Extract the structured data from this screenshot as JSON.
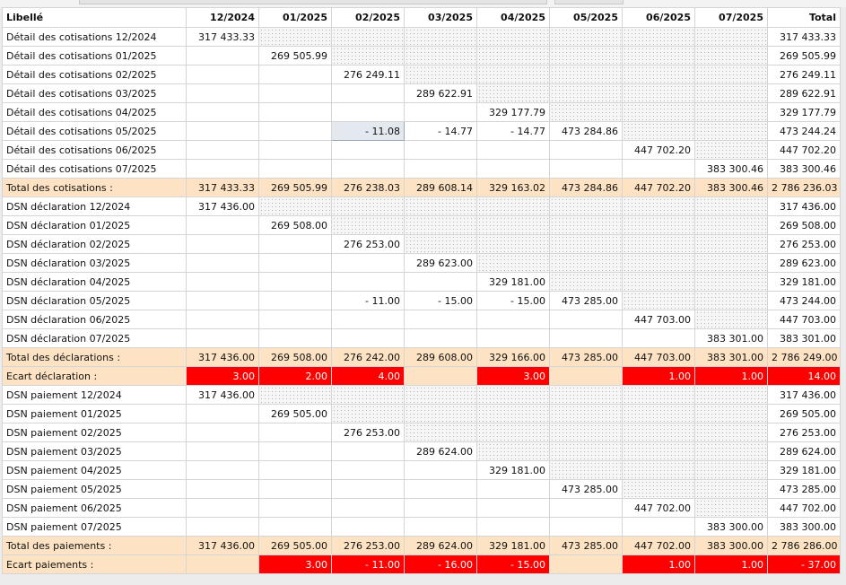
{
  "header": [
    "Libellé",
    "12/2024",
    "01/2025",
    "02/2025",
    "03/2025",
    "04/2025",
    "05/2025",
    "06/2025",
    "07/2025",
    "Total"
  ],
  "rows": [
    {
      "type": "row",
      "label": "Détail des cotisations 12/2024",
      "c": [
        "317 433.33",
        "",
        "",
        "",
        "",
        "",
        "",
        ""
      ],
      "total": "317 433.33",
      "dotted": [
        1,
        2,
        3,
        4,
        5,
        6,
        7
      ]
    },
    {
      "type": "row",
      "label": "Détail des cotisations 01/2025",
      "c": [
        "",
        "269 505.99",
        "",
        "",
        "",
        "",
        "",
        ""
      ],
      "total": "269 505.99",
      "dotted": [
        2,
        3,
        4,
        5,
        6,
        7
      ]
    },
    {
      "type": "row",
      "label": "Détail des cotisations 02/2025",
      "c": [
        "",
        "",
        "276 249.11",
        "",
        "",
        "",
        "",
        ""
      ],
      "total": "276 249.11",
      "dotted": [
        3,
        4,
        5,
        6,
        7
      ]
    },
    {
      "type": "row",
      "label": "Détail des cotisations 03/2025",
      "c": [
        "",
        "",
        "",
        "289 622.91",
        "",
        "",
        "",
        ""
      ],
      "total": "289 622.91",
      "dotted": [
        4,
        5,
        6,
        7
      ]
    },
    {
      "type": "row",
      "label": "Détail des cotisations 04/2025",
      "c": [
        "",
        "",
        "",
        "",
        "329 177.79",
        "",
        "",
        ""
      ],
      "total": "329 177.79",
      "dotted": [
        5,
        6,
        7
      ]
    },
    {
      "type": "row",
      "label": "Détail des cotisations 05/2025",
      "c": [
        "",
        "",
        "- 11.08",
        "- 14.77",
        "- 14.77",
        "473 284.86",
        "",
        ""
      ],
      "total": "473 244.24",
      "dotted": [
        6,
        7
      ],
      "selected": 2
    },
    {
      "type": "row",
      "label": "Détail des cotisations 06/2025",
      "c": [
        "",
        "",
        "",
        "",
        "",
        "",
        "447 702.20",
        ""
      ],
      "total": "447 702.20",
      "dotted": [
        7
      ]
    },
    {
      "type": "row",
      "label": "Détail des cotisations 07/2025",
      "c": [
        "",
        "",
        "",
        "",
        "",
        "",
        "",
        "383 300.46"
      ],
      "total": "383 300.46",
      "dotted": []
    },
    {
      "type": "tot",
      "label": "Total des cotisations :",
      "c": [
        "317 433.33",
        "269 505.99",
        "276 238.03",
        "289 608.14",
        "329 163.02",
        "473 284.86",
        "447 702.20",
        "383 300.46"
      ],
      "total": "2 786 236.03"
    },
    {
      "type": "row",
      "label": "DSN déclaration 12/2024",
      "c": [
        "317 436.00",
        "",
        "",
        "",
        "",
        "",
        "",
        ""
      ],
      "total": "317 436.00",
      "dotted": [
        1,
        2,
        3,
        4,
        5,
        6,
        7
      ]
    },
    {
      "type": "row",
      "label": "DSN déclaration 01/2025",
      "c": [
        "",
        "269 508.00",
        "",
        "",
        "",
        "",
        "",
        ""
      ],
      "total": "269 508.00",
      "dotted": [
        2,
        3,
        4,
        5,
        6,
        7
      ]
    },
    {
      "type": "row",
      "label": "DSN déclaration 02/2025",
      "c": [
        "",
        "",
        "276 253.00",
        "",
        "",
        "",
        "",
        ""
      ],
      "total": "276 253.00",
      "dotted": [
        3,
        4,
        5,
        6,
        7
      ]
    },
    {
      "type": "row",
      "label": "DSN déclaration 03/2025",
      "c": [
        "",
        "",
        "",
        "289 623.00",
        "",
        "",
        "",
        ""
      ],
      "total": "289 623.00",
      "dotted": [
        4,
        5,
        6,
        7
      ]
    },
    {
      "type": "row",
      "label": "DSN déclaration 04/2025",
      "c": [
        "",
        "",
        "",
        "",
        "329 181.00",
        "",
        "",
        ""
      ],
      "total": "329 181.00",
      "dotted": [
        5,
        6,
        7
      ]
    },
    {
      "type": "row",
      "label": "DSN déclaration 05/2025",
      "c": [
        "",
        "",
        "- 11.00",
        "- 15.00",
        "- 15.00",
        "473 285.00",
        "",
        ""
      ],
      "total": "473 244.00",
      "dotted": [
        6,
        7
      ]
    },
    {
      "type": "row",
      "label": "DSN déclaration 06/2025",
      "c": [
        "",
        "",
        "",
        "",
        "",
        "",
        "447 703.00",
        ""
      ],
      "total": "447 703.00",
      "dotted": [
        7
      ]
    },
    {
      "type": "row",
      "label": "DSN déclaration 07/2025",
      "c": [
        "",
        "",
        "",
        "",
        "",
        "",
        "",
        "383 301.00"
      ],
      "total": "383 301.00",
      "dotted": []
    },
    {
      "type": "tot",
      "label": "Total des déclarations :",
      "c": [
        "317 436.00",
        "269 508.00",
        "276 242.00",
        "289 608.00",
        "329 166.00",
        "473 285.00",
        "447 703.00",
        "383 301.00"
      ],
      "total": "2 786 249.00"
    },
    {
      "type": "ecart",
      "label": "Ecart déclaration :",
      "c": [
        "3.00",
        "2.00",
        "4.00",
        "",
        "3.00",
        "",
        "1.00",
        "1.00"
      ],
      "total": "14.00",
      "red": [
        0,
        1,
        2,
        4,
        6,
        7,
        8
      ]
    },
    {
      "type": "row",
      "label": "DSN paiement 12/2024",
      "c": [
        "317 436.00",
        "",
        "",
        "",
        "",
        "",
        "",
        ""
      ],
      "total": "317 436.00",
      "dotted": [
        1,
        2,
        3,
        4,
        5,
        6,
        7
      ]
    },
    {
      "type": "row",
      "label": "DSN paiement 01/2025",
      "c": [
        "",
        "269 505.00",
        "",
        "",
        "",
        "",
        "",
        ""
      ],
      "total": "269 505.00",
      "dotted": [
        2,
        3,
        4,
        5,
        6,
        7
      ]
    },
    {
      "type": "row",
      "label": "DSN paiement 02/2025",
      "c": [
        "",
        "",
        "276 253.00",
        "",
        "",
        "",
        "",
        ""
      ],
      "total": "276 253.00",
      "dotted": [
        3,
        4,
        5,
        6,
        7
      ]
    },
    {
      "type": "row",
      "label": "DSN paiement 03/2025",
      "c": [
        "",
        "",
        "",
        "289 624.00",
        "",
        "",
        "",
        ""
      ],
      "total": "289 624.00",
      "dotted": [
        4,
        5,
        6,
        7
      ]
    },
    {
      "type": "row",
      "label": "DSN paiement 04/2025",
      "c": [
        "",
        "",
        "",
        "",
        "329 181.00",
        "",
        "",
        ""
      ],
      "total": "329 181.00",
      "dotted": [
        5,
        6,
        7
      ]
    },
    {
      "type": "row",
      "label": "DSN paiement 05/2025",
      "c": [
        "",
        "",
        "",
        "",
        "",
        "473 285.00",
        "",
        ""
      ],
      "total": "473 285.00",
      "dotted": [
        6,
        7
      ]
    },
    {
      "type": "row",
      "label": "DSN paiement 06/2025",
      "c": [
        "",
        "",
        "",
        "",
        "",
        "",
        "447 702.00",
        ""
      ],
      "total": "447 702.00",
      "dotted": [
        7
      ]
    },
    {
      "type": "row",
      "label": "DSN paiement 07/2025",
      "c": [
        "",
        "",
        "",
        "",
        "",
        "",
        "",
        "383 300.00"
      ],
      "total": "383 300.00",
      "dotted": []
    },
    {
      "type": "tot",
      "label": "Total des paiements :",
      "c": [
        "317 436.00",
        "269 505.00",
        "276 253.00",
        "289 624.00",
        "329 181.00",
        "473 285.00",
        "447 702.00",
        "383 300.00"
      ],
      "total": "2 786 286.00"
    },
    {
      "type": "ecart",
      "label": "Ecart paiements :",
      "c": [
        "",
        "3.00",
        "- 11.00",
        "- 16.00",
        "- 15.00",
        "",
        "1.00",
        "1.00"
      ],
      "total": "- 37.00",
      "red": [
        1,
        2,
        3,
        4,
        6,
        7,
        8
      ]
    }
  ]
}
